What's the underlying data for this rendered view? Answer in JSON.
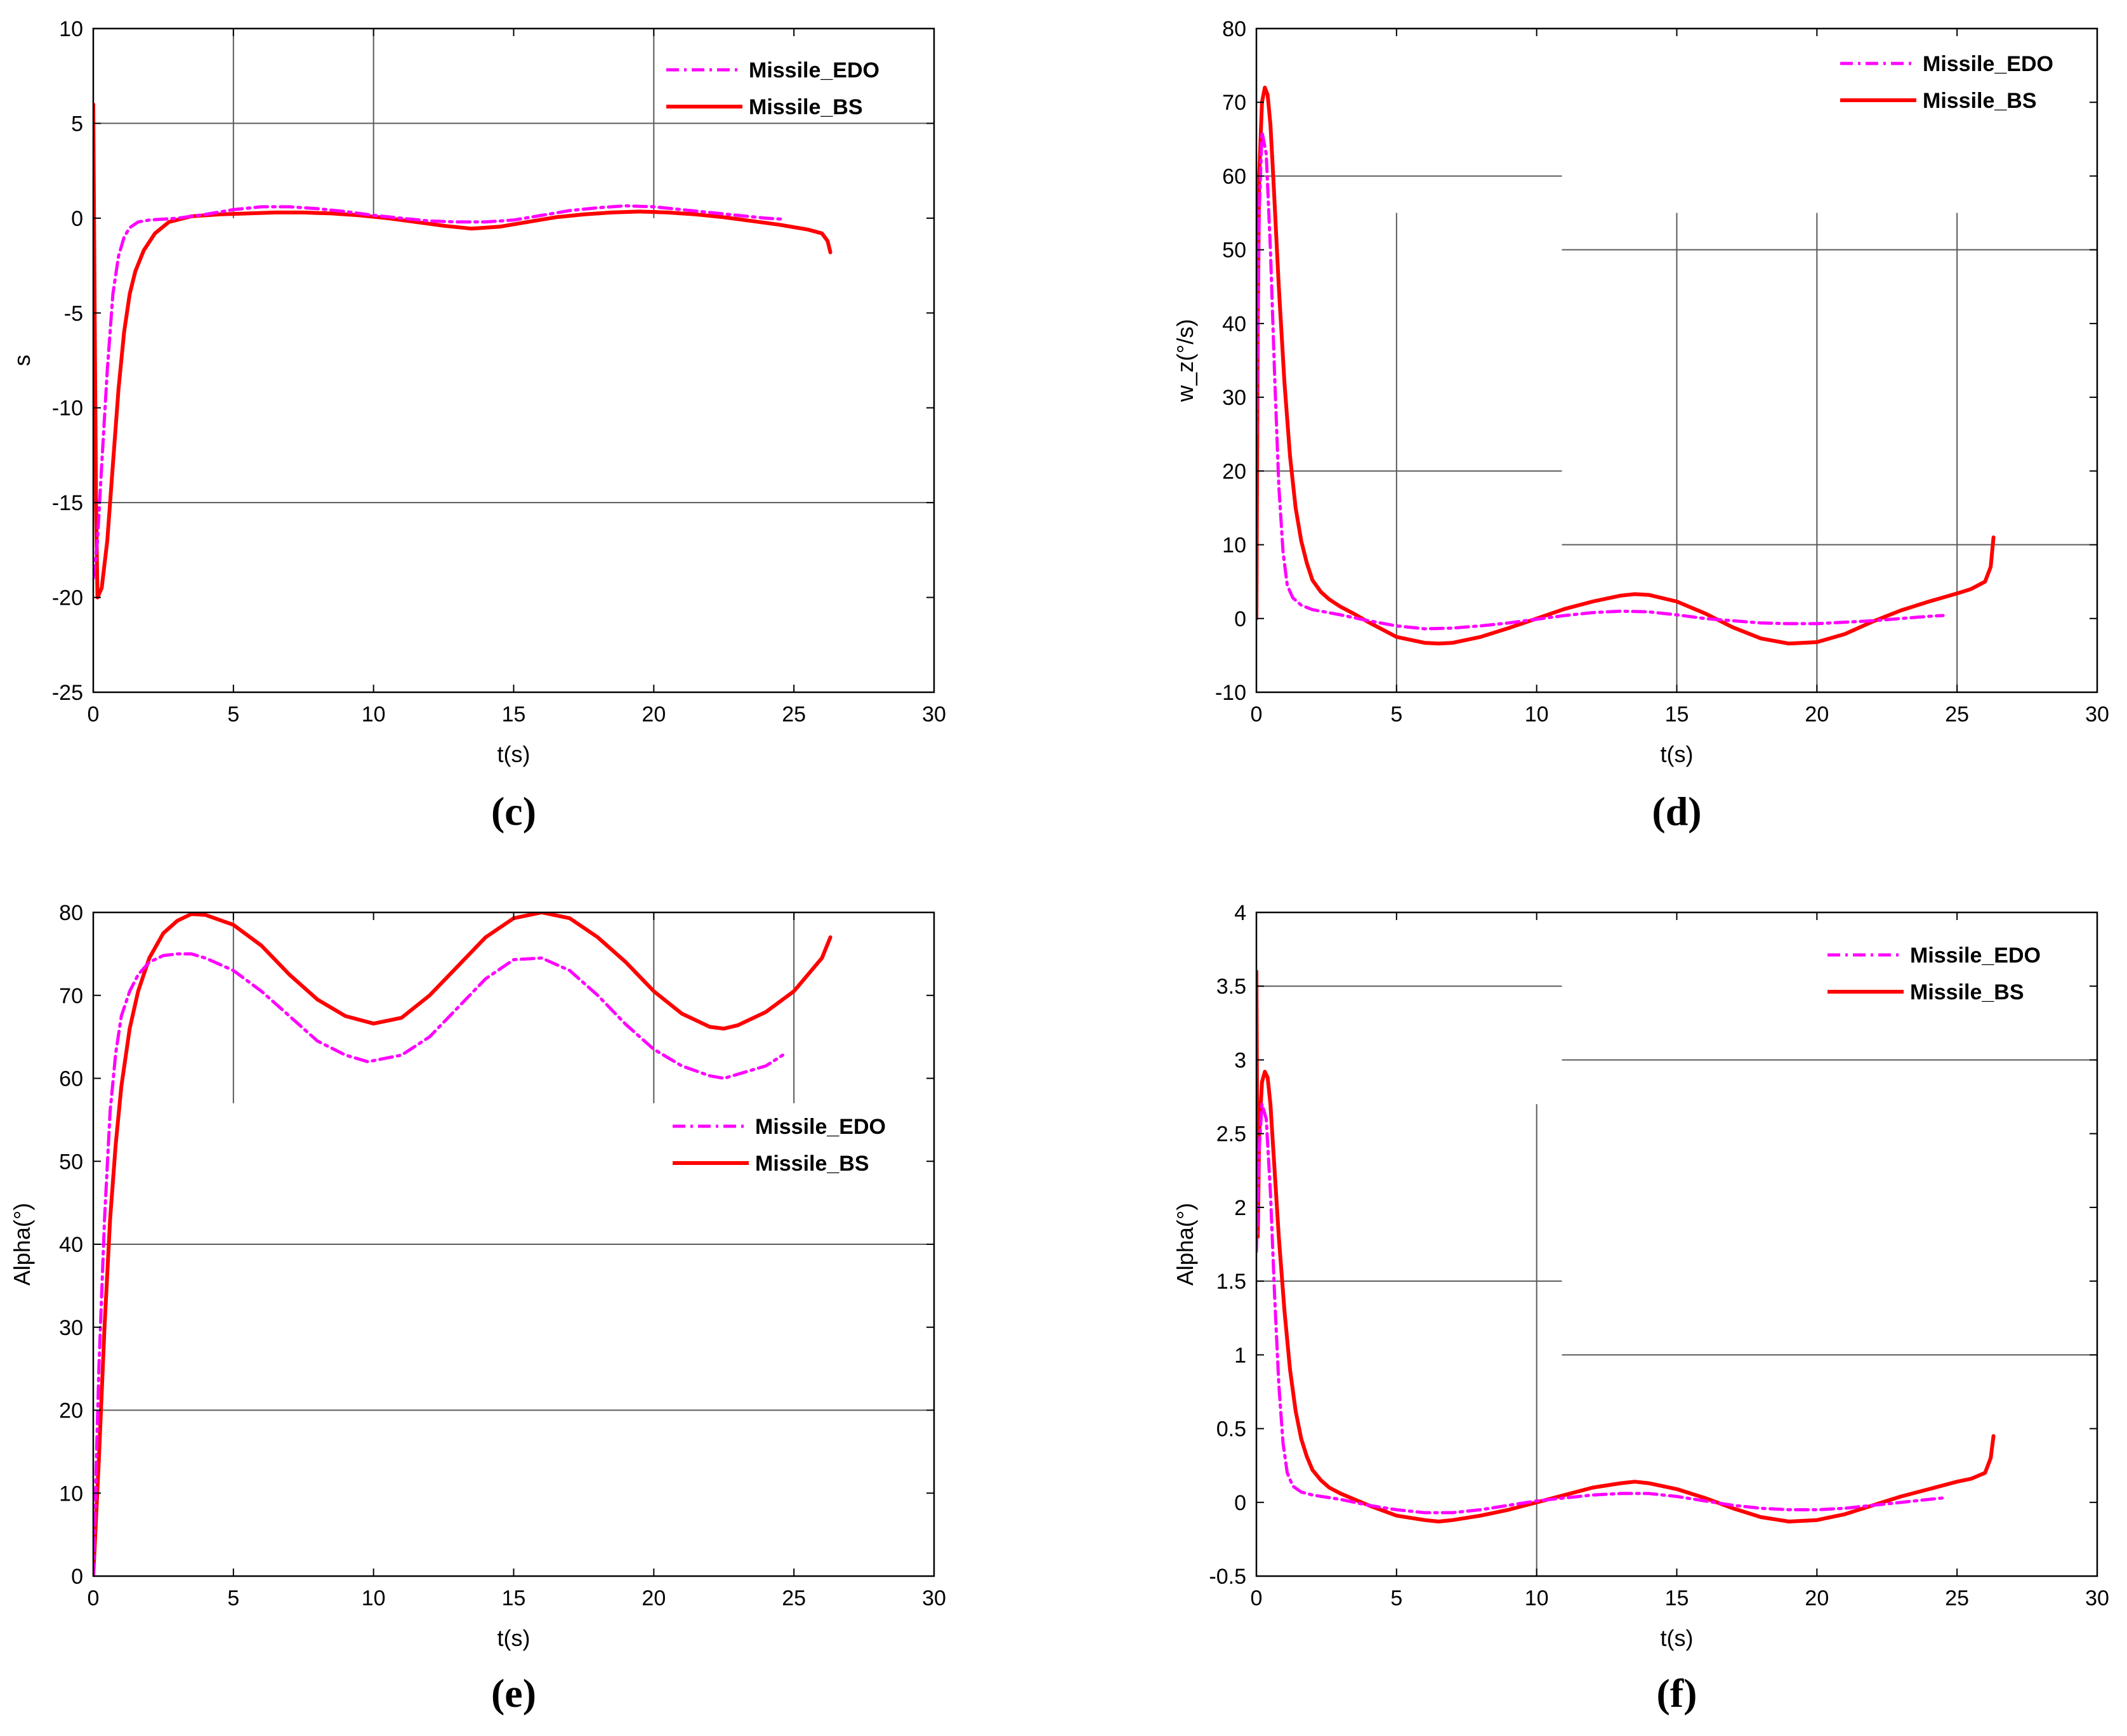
{
  "colors": {
    "edo": "#ff00ff",
    "bs": "#ff0000",
    "axis": "#000000",
    "grid": "#5a5a5a"
  },
  "chart_data": [
    {
      "id": "c",
      "type": "line",
      "panel_label": "(c)",
      "xlabel": "t(s)",
      "ylabel": "s",
      "xlim": [
        0,
        30
      ],
      "ylim": [
        -25,
        10
      ],
      "xticks": [
        0,
        5,
        10,
        15,
        20,
        25,
        30
      ],
      "yticks": [
        -25,
        -20,
        -15,
        -10,
        -5,
        0,
        5,
        10
      ],
      "legend_position": "top-right",
      "grid": {
        "h": [
          {
            "y": 5,
            "x0": 0,
            "x1": 30
          },
          {
            "y": -15,
            "x0": 0,
            "x1": 30
          }
        ],
        "v": [
          {
            "x": 5,
            "y0": 0,
            "y1": 10
          },
          {
            "x": 10,
            "y0": 0,
            "y1": 10
          },
          {
            "x": 20,
            "y0": 0,
            "y1": 10
          }
        ]
      },
      "series": [
        {
          "name": "Missile_EDO",
          "style": "dashdot",
          "x": [
            0,
            0.15,
            0.3,
            0.5,
            0.7,
            0.9,
            1.1,
            1.3,
            1.6,
            2,
            3,
            4,
            5,
            6,
            7,
            8,
            9,
            10,
            11,
            12,
            13,
            14,
            15,
            16,
            17,
            18,
            19,
            20,
            21,
            22,
            23,
            24,
            24.6
          ],
          "y": [
            -19,
            -17,
            -13,
            -8,
            -4,
            -2,
            -1,
            -0.5,
            -0.2,
            -0.1,
            0,
            0.2,
            0.45,
            0.6,
            0.6,
            0.5,
            0.35,
            0.15,
            0,
            -0.15,
            -0.2,
            -0.2,
            -0.1,
            0.15,
            0.4,
            0.55,
            0.65,
            0.6,
            0.45,
            0.3,
            0.15,
            0,
            -0.05
          ]
        },
        {
          "name": "Missile_BS",
          "style": "solid",
          "x": [
            0,
            0.05,
            0.1,
            0.15,
            0.3,
            0.5,
            0.7,
            0.9,
            1.1,
            1.3,
            1.5,
            1.8,
            2.2,
            2.7,
            3.5,
            4.5,
            5.5,
            6.5,
            7.5,
            8.5,
            9.5,
            10.5,
            11.5,
            12.5,
            13.5,
            14.5,
            15.5,
            16.5,
            17.5,
            18.5,
            19.5,
            20.5,
            21.5,
            22.5,
            23.5,
            24.5,
            25.5,
            26,
            26.2,
            26.3
          ],
          "y": [
            6,
            -5,
            -15,
            -20,
            -19.5,
            -17,
            -13,
            -9,
            -6,
            -4,
            -2.8,
            -1.7,
            -0.8,
            -0.2,
            0.1,
            0.2,
            0.25,
            0.3,
            0.3,
            0.25,
            0.15,
            0,
            -0.2,
            -0.4,
            -0.55,
            -0.45,
            -0.2,
            0.05,
            0.2,
            0.3,
            0.35,
            0.3,
            0.2,
            0.05,
            -0.15,
            -0.35,
            -0.6,
            -0.8,
            -1.2,
            -1.8
          ]
        }
      ]
    },
    {
      "id": "d",
      "type": "line",
      "panel_label": "(d)",
      "xlabel": "t(s)",
      "ylabel": "w_z(°/s)",
      "xlim": [
        0,
        30
      ],
      "ylim": [
        -10,
        80
      ],
      "xticks": [
        0,
        5,
        10,
        15,
        20,
        25,
        30
      ],
      "yticks": [
        -10,
        0,
        10,
        20,
        30,
        40,
        50,
        60,
        70,
        80
      ],
      "legend_position": "top-right",
      "grid": {
        "h": [
          {
            "y": 60,
            "x0": 0,
            "x1": 10.9
          },
          {
            "y": 20,
            "x0": 0,
            "x1": 10.9
          },
          {
            "y": 50,
            "x0": 10.9,
            "x1": 30
          },
          {
            "y": 10,
            "x0": 10.9,
            "x1": 30
          }
        ],
        "v": [
          {
            "x": 5,
            "y0": -10,
            "y1": 55
          },
          {
            "x": 15,
            "y0": -10,
            "y1": 55
          },
          {
            "x": 20,
            "y0": -10,
            "y1": 55
          },
          {
            "x": 25,
            "y0": -10,
            "y1": 55
          }
        ]
      },
      "series": [
        {
          "name": "Missile_EDO",
          "style": "dashdot",
          "x": [
            0,
            0.1,
            0.2,
            0.35,
            0.5,
            0.65,
            0.8,
            0.95,
            1.1,
            1.3,
            1.6,
            2,
            3,
            4,
            5,
            6,
            7,
            8,
            9,
            10,
            11,
            12,
            13,
            14,
            15,
            16,
            17,
            18,
            19,
            20,
            21,
            22,
            23,
            24,
            24.5
          ],
          "y": [
            25,
            55,
            66,
            63,
            50,
            33,
            18,
            9,
            4.5,
            2.8,
            1.8,
            1.2,
            0.5,
            -0.3,
            -1,
            -1.4,
            -1.3,
            -1,
            -0.6,
            -0.1,
            0.4,
            0.8,
            1,
            0.9,
            0.5,
            0,
            -0.3,
            -0.6,
            -0.7,
            -0.7,
            -0.5,
            -0.3,
            0,
            0.3,
            0.4
          ]
        },
        {
          "name": "Missile_BS",
          "style": "solid",
          "x": [
            0,
            0.05,
            0.1,
            0.2,
            0.3,
            0.4,
            0.5,
            0.6,
            0.8,
            1,
            1.2,
            1.4,
            1.6,
            1.8,
            2,
            2.3,
            2.6,
            3,
            3.5,
            4,
            5,
            6,
            6.5,
            7,
            8,
            9,
            10,
            11,
            12,
            13,
            13.5,
            14,
            15,
            16,
            17,
            18,
            19,
            20,
            21,
            22,
            23,
            24,
            25,
            25.5,
            26,
            26.2,
            26.3
          ],
          "y": [
            0,
            40,
            60,
            70,
            72,
            71,
            67,
            60,
            45,
            32,
            22,
            15,
            10.5,
            7.5,
            5.2,
            3.6,
            2.6,
            1.6,
            0.6,
            -0.5,
            -2.5,
            -3.3,
            -3.4,
            -3.3,
            -2.5,
            -1.3,
            0,
            1.3,
            2.3,
            3.1,
            3.3,
            3.2,
            2.3,
            0.7,
            -1.2,
            -2.7,
            -3.4,
            -3.2,
            -2.1,
            -0.4,
            1.1,
            2.3,
            3.4,
            4,
            5,
            7,
            11
          ]
        }
      ]
    },
    {
      "id": "e",
      "type": "line",
      "panel_label": "(e)",
      "xlabel": "t(s)",
      "ylabel": "Alpha(°)",
      "xlim": [
        0,
        30
      ],
      "ylim": [
        0,
        80
      ],
      "xticks": [
        0,
        5,
        10,
        15,
        20,
        25,
        30
      ],
      "yticks": [
        0,
        10,
        20,
        30,
        40,
        50,
        60,
        70,
        80
      ],
      "legend_position": "center-right",
      "grid": {
        "h": [
          {
            "y": 40,
            "x0": 0,
            "x1": 30
          },
          {
            "y": 20,
            "x0": 0,
            "x1": 30
          }
        ],
        "v": [
          {
            "x": 5,
            "y0": 57,
            "y1": 80
          },
          {
            "x": 20,
            "y0": 57,
            "y1": 80
          },
          {
            "x": 25,
            "y0": 57,
            "y1": 80
          }
        ]
      },
      "series": [
        {
          "name": "Missile_EDO",
          "style": "dashdot",
          "x": [
            0,
            0.2,
            0.4,
            0.6,
            0.8,
            1,
            1.3,
            1.6,
            2,
            2.5,
            3,
            3.5,
            4,
            5,
            6,
            7,
            8,
            9,
            9.8,
            11,
            12,
            13,
            14,
            15,
            16,
            17,
            18,
            19,
            20,
            21,
            22,
            22.5,
            23,
            24,
            24.6
          ],
          "y": [
            0,
            25,
            43,
            56,
            63,
            67.5,
            70.5,
            72.5,
            74,
            74.8,
            75,
            75,
            74.5,
            73,
            70.5,
            67.5,
            64.5,
            62.8,
            62,
            62.8,
            65,
            68.5,
            72,
            74.3,
            74.5,
            73,
            70,
            66.5,
            63.5,
            61.5,
            60.3,
            60,
            60.5,
            61.5,
            62.8
          ]
        },
        {
          "name": "Missile_BS",
          "style": "solid",
          "x": [
            0,
            0.2,
            0.4,
            0.6,
            0.8,
            1,
            1.3,
            1.6,
            2,
            2.5,
            3,
            3.5,
            4,
            5,
            6,
            7,
            8,
            9,
            10,
            11,
            12,
            13,
            14,
            15,
            16,
            17,
            18,
            19,
            20,
            21,
            22,
            22.5,
            23,
            24,
            25,
            26,
            26.3
          ],
          "y": [
            0,
            14,
            30,
            43,
            52,
            59,
            66,
            70.5,
            74.5,
            77.5,
            79,
            79.8,
            79.7,
            78.5,
            76,
            72.5,
            69.5,
            67.5,
            66.6,
            67.3,
            70,
            73.5,
            77,
            79.3,
            80,
            79.3,
            77,
            74,
            70.5,
            67.8,
            66.2,
            66,
            66.4,
            68,
            70.5,
            74.5,
            77
          ]
        }
      ]
    },
    {
      "id": "f",
      "type": "line",
      "panel_label": "(f)",
      "xlabel": "t(s)",
      "ylabel": "Alpha(°)",
      "xlim": [
        0,
        30
      ],
      "ylim": [
        -0.5,
        4
      ],
      "xticks": [
        0,
        5,
        10,
        15,
        20,
        25,
        30
      ],
      "yticks": [
        -0.5,
        0,
        0.5,
        1,
        1.5,
        2,
        2.5,
        3,
        3.5,
        4
      ],
      "legend_position": "top-right",
      "grid": {
        "h": [
          {
            "y": 3.5,
            "x0": 0,
            "x1": 10.9
          },
          {
            "y": 1.5,
            "x0": 0,
            "x1": 10.9
          },
          {
            "y": 3,
            "x0": 10.9,
            "x1": 30
          },
          {
            "y": 1,
            "x0": 10.9,
            "x1": 30
          }
        ],
        "v": [
          {
            "x": 10,
            "y0": -0.5,
            "y1": 2.7
          }
        ]
      },
      "series": [
        {
          "name": "Missile_EDO",
          "style": "dashdot",
          "x": [
            0,
            0.1,
            0.2,
            0.35,
            0.5,
            0.65,
            0.8,
            0.95,
            1.1,
            1.3,
            1.6,
            2,
            3,
            4,
            5,
            6,
            7,
            8,
            9,
            10,
            11,
            12,
            13,
            14,
            15,
            16,
            17,
            18,
            19,
            20,
            21,
            22,
            23,
            24,
            24.5
          ],
          "y": [
            1.7,
            2.4,
            2.7,
            2.6,
            2.1,
            1.4,
            0.8,
            0.4,
            0.2,
            0.11,
            0.07,
            0.05,
            0.02,
            -0.02,
            -0.05,
            -0.07,
            -0.07,
            -0.05,
            -0.02,
            0.01,
            0.03,
            0.05,
            0.06,
            0.06,
            0.04,
            0.01,
            -0.02,
            -0.04,
            -0.05,
            -0.05,
            -0.04,
            -0.02,
            0,
            0.02,
            0.03
          ]
        },
        {
          "name": "Missile_BS",
          "style": "solid",
          "x": [
            0,
            0.05,
            0.1,
            0.2,
            0.3,
            0.4,
            0.5,
            0.6,
            0.8,
            1,
            1.2,
            1.4,
            1.6,
            1.8,
            2,
            2.3,
            2.6,
            3,
            3.5,
            4,
            5,
            6,
            6.5,
            7,
            8,
            9,
            10,
            11,
            12,
            13,
            13.5,
            14,
            15,
            16,
            17,
            18,
            19,
            20,
            21,
            22,
            23,
            24,
            25,
            25.5,
            26,
            26.2,
            26.3
          ],
          "y": [
            3.6,
            1.8,
            2.5,
            2.85,
            2.92,
            2.88,
            2.7,
            2.4,
            1.8,
            1.3,
            0.9,
            0.62,
            0.43,
            0.31,
            0.22,
            0.15,
            0.1,
            0.06,
            0.02,
            -0.02,
            -0.09,
            -0.12,
            -0.13,
            -0.12,
            -0.09,
            -0.05,
            0,
            0.05,
            0.1,
            0.13,
            0.14,
            0.13,
            0.09,
            0.03,
            -0.04,
            -0.1,
            -0.13,
            -0.12,
            -0.08,
            -0.02,
            0.04,
            0.09,
            0.14,
            0.16,
            0.2,
            0.3,
            0.45
          ]
        }
      ]
    }
  ]
}
